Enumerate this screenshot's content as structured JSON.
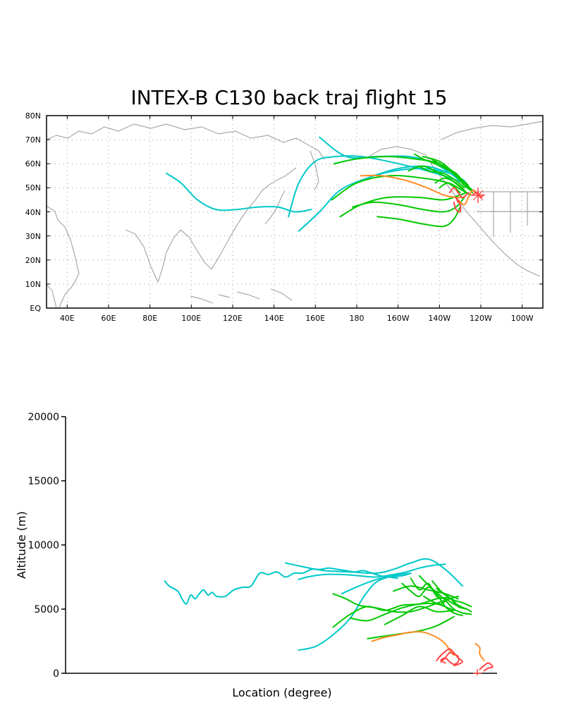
{
  "chart_data": [
    {
      "type": "line",
      "title": "INTEX-B C130 back traj flight 15",
      "projection": "map",
      "x_ticks": [
        "40E",
        "60E",
        "80E",
        "100E",
        "120E",
        "140E",
        "160E",
        "180",
        "160W",
        "140W",
        "120W",
        "100W"
      ],
      "y_ticks": [
        "EQ",
        "10N",
        "20N",
        "30N",
        "40N",
        "50N",
        "60N",
        "70N",
        "80N"
      ],
      "x_range_deg_east": [
        30,
        270
      ],
      "y_range_deg_north": [
        0,
        80
      ],
      "grid": true,
      "series": [
        {
          "color": "#00c8c8",
          "lon": [
            88,
            95,
            103,
            112,
            122,
            132,
            142,
            150,
            158
          ],
          "lat": [
            56,
            52,
            45,
            41,
            41,
            42,
            42,
            40,
            41
          ]
        },
        {
          "color": "#00c8c8",
          "lon": [
            162,
            175,
            190,
            205,
            218,
            230
          ],
          "lat": [
            71,
            63,
            63,
            63,
            60,
            53
          ]
        },
        {
          "color": "#00c8c8",
          "lon": [
            147,
            152,
            160,
            170,
            182,
            195,
            210,
            222,
            232
          ],
          "lat": [
            38,
            52,
            61,
            63,
            63,
            61,
            58,
            55,
            52
          ]
        },
        {
          "color": "#00c8c8",
          "lon": [
            152,
            162,
            172,
            185,
            198,
            212,
            225,
            232
          ],
          "lat": [
            32,
            40,
            49,
            54,
            57,
            58,
            56,
            53
          ]
        },
        {
          "color": "#00c8c8",
          "lon": [
            188,
            200,
            213,
            222,
            228,
            233
          ],
          "lat": [
            55,
            58,
            59,
            57,
            55,
            52
          ]
        },
        {
          "color": "#00c800",
          "lon": [
            169,
            180,
            195,
            208,
            220,
            228,
            232,
            236
          ],
          "lat": [
            60,
            62,
            63,
            62,
            60,
            55,
            52,
            49
          ]
        },
        {
          "color": "#00c800",
          "lon": [
            172,
            182,
            195,
            210,
            222,
            230,
            233
          ],
          "lat": [
            38,
            43,
            46,
            46,
            45,
            47,
            48
          ]
        },
        {
          "color": "#00c800",
          "lon": [
            168,
            180,
            196,
            212,
            224,
            230
          ],
          "lat": [
            45,
            52,
            55,
            54,
            52,
            48
          ]
        },
        {
          "color": "#00c800",
          "lon": [
            178,
            188,
            200,
            212,
            222,
            228,
            232
          ],
          "lat": [
            42,
            44,
            43,
            41,
            40,
            42,
            46
          ]
        },
        {
          "color": "#00c800",
          "lon": [
            190,
            200,
            212,
            222,
            227,
            230
          ],
          "lat": [
            38,
            37,
            35,
            34,
            37,
            42
          ]
        },
        {
          "color": "#00c800",
          "lon": [
            208,
            212,
            218,
            225,
            229,
            232,
            235
          ],
          "lat": [
            64,
            62,
            60,
            57,
            54,
            51,
            49
          ]
        },
        {
          "color": "#00c800",
          "lon": [
            210,
            215,
            222,
            228,
            232
          ],
          "lat": [
            59,
            57,
            56,
            53,
            50
          ]
        },
        {
          "color": "#00c800",
          "lon": [
            212,
            220,
            226,
            230,
            234
          ],
          "lat": [
            63,
            61,
            57,
            54,
            51
          ]
        },
        {
          "color": "#00c800",
          "lon": [
            216,
            222,
            228,
            232,
            236
          ],
          "lat": [
            62,
            59,
            56,
            52,
            48
          ]
        },
        {
          "color": "#00c800",
          "lon": [
            205,
            212,
            220,
            228,
            233
          ],
          "lat": [
            57,
            59,
            56,
            52,
            48
          ]
        },
        {
          "color": "#00c800",
          "lon": [
            218,
            222,
            226,
            229,
            232
          ],
          "lat": [
            52,
            54,
            53,
            51,
            49
          ]
        },
        {
          "color": "#00c800",
          "lon": [
            220,
            224,
            229,
            233,
            235
          ],
          "lat": [
            50,
            52,
            50,
            48,
            47
          ]
        },
        {
          "color": "#ff8c28",
          "lon": [
            182,
            192,
            204,
            214,
            222,
            228,
            232
          ],
          "lat": [
            55,
            55,
            53,
            50,
            47,
            46,
            46
          ]
        },
        {
          "color": "#ff8c28",
          "lon": [
            229,
            232,
            234,
            236,
            238,
            240
          ],
          "lat": [
            45,
            43,
            46,
            49,
            48,
            47
          ]
        },
        {
          "color": "#ff4646",
          "lon": [
            225,
            227,
            229,
            231,
            233,
            234
          ],
          "lat": [
            48,
            50,
            48,
            46,
            47,
            48
          ]
        },
        {
          "color": "#ff4646",
          "lon": [
            227,
            228,
            230,
            230,
            228,
            229
          ],
          "lat": [
            44,
            41,
            40,
            43,
            46,
            44
          ]
        },
        {
          "color": "#ff4646",
          "lon": [
            236,
            238,
            240,
            241
          ],
          "lat": [
            47,
            48,
            46,
            47
          ]
        }
      ]
    },
    {
      "type": "line",
      "ylabel": "Altitude (m)",
      "xlabel": "Location (degree)",
      "y_ticks": [
        "0",
        "5000",
        "10000",
        "15000",
        "20000"
      ],
      "ylim": [
        0,
        20000
      ],
      "x_range": [
        0,
        100
      ],
      "series": [
        {
          "color": "#00c8c8",
          "x": [
            23,
            24,
            26,
            27,
            28,
            29,
            30,
            31,
            32,
            33,
            34,
            35,
            37,
            39,
            41,
            43,
            45,
            47,
            49,
            51,
            53,
            55,
            57,
            59,
            61,
            63,
            65,
            67,
            69,
            71,
            73,
            75,
            77
          ],
          "y": [
            7200,
            6800,
            6400,
            5800,
            5400,
            6100,
            5800,
            6200,
            6500,
            6100,
            6300,
            6000,
            6000,
            6500,
            6700,
            6800,
            7800,
            7700,
            7900,
            7500,
            7800,
            7800,
            8100,
            8100,
            8200,
            8100,
            8000,
            7900,
            8000,
            7800,
            7600,
            7500,
            7400
          ]
        },
        {
          "color": "#00c8c8",
          "x": [
            51,
            55,
            60,
            66,
            72,
            76,
            80,
            84,
            88,
            92
          ],
          "y": [
            8600,
            8300,
            8000,
            7900,
            7800,
            8100,
            8600,
            8900,
            8100,
            6800
          ]
        },
        {
          "color": "#00c8c8",
          "x": [
            54,
            56,
            60,
            64,
            68,
            72,
            76,
            79,
            82,
            85,
            88
          ],
          "y": [
            7300,
            7500,
            7700,
            7700,
            7600,
            7500,
            7700,
            7900,
            8200,
            8400,
            8500
          ]
        },
        {
          "color": "#00c8c8",
          "x": [
            54,
            58,
            62,
            66,
            69,
            72,
            76,
            80
          ],
          "y": [
            1800,
            2100,
            3000,
            4300,
            5900,
            7100,
            7600,
            7800
          ]
        },
        {
          "color": "#00c8c8",
          "x": [
            64,
            68,
            72,
            75,
            78,
            80
          ],
          "y": [
            6200,
            6800,
            7300,
            7500,
            7600,
            7800
          ]
        },
        {
          "color": "#00c800",
          "x": [
            62,
            66,
            70,
            74,
            78,
            82,
            86,
            89
          ],
          "y": [
            3600,
            4600,
            5200,
            4900,
            5300,
            5400,
            5800,
            5900
          ]
        },
        {
          "color": "#00c800",
          "x": [
            62,
            65,
            68,
            72,
            76,
            80,
            84,
            88,
            91
          ],
          "y": [
            6200,
            5800,
            5300,
            5100,
            4800,
            4800,
            5200,
            5700,
            6000
          ]
        },
        {
          "color": "#00c800",
          "x": [
            66,
            70,
            74,
            78,
            82,
            86,
            90
          ],
          "y": [
            4300,
            4100,
            4600,
            5100,
            5400,
            5400,
            4900
          ]
        },
        {
          "color": "#00c800",
          "x": [
            70,
            74,
            78,
            82,
            86,
            90
          ],
          "y": [
            2700,
            2900,
            3100,
            3300,
            3700,
            4400
          ]
        },
        {
          "color": "#00c800",
          "x": [
            74,
            78,
            82,
            86,
            90
          ],
          "y": [
            3800,
            4500,
            5200,
            4800,
            4900
          ]
        },
        {
          "color": "#00c800",
          "x": [
            76,
            80,
            84,
            88,
            91
          ],
          "y": [
            6400,
            6800,
            6500,
            6200,
            5800
          ]
        },
        {
          "color": "#00c800",
          "x": [
            78,
            80,
            82,
            84,
            86,
            88,
            90,
            92
          ],
          "y": [
            7000,
            6400,
            6000,
            6700,
            6200,
            5200,
            4700,
            4500
          ]
        },
        {
          "color": "#00c800",
          "x": [
            80,
            82,
            84,
            86,
            88,
            90,
            92
          ],
          "y": [
            7400,
            6500,
            7000,
            6000,
            5800,
            5400,
            5100
          ]
        },
        {
          "color": "#00c800",
          "x": [
            82,
            84,
            86,
            88,
            90,
            92,
            94
          ],
          "y": [
            7600,
            6900,
            6300,
            5700,
            5000,
            4700,
            4600
          ]
        },
        {
          "color": "#00c800",
          "x": [
            83,
            85,
            87,
            89,
            91,
            93
          ],
          "y": [
            6000,
            5600,
            5400,
            5800,
            5300,
            5000
          ]
        },
        {
          "color": "#00c800",
          "x": [
            85,
            87,
            89,
            91,
            93,
            94
          ],
          "y": [
            7200,
            6400,
            5900,
            5200,
            5000,
            4800
          ]
        },
        {
          "color": "#00c800",
          "x": [
            86,
            88,
            90,
            92,
            94
          ],
          "y": [
            6600,
            6100,
            5700,
            5500,
            5200
          ]
        },
        {
          "color": "#ff8c28",
          "x": [
            71,
            74,
            77,
            80,
            83,
            86,
            88,
            89,
            90
          ],
          "y": [
            2500,
            2800,
            3000,
            3200,
            3200,
            2800,
            2300,
            1800,
            1400
          ]
        },
        {
          "color": "#ff8c28",
          "x": [
            95,
            96,
            96,
            97
          ],
          "y": [
            2300,
            2000,
            1500,
            1000
          ]
        },
        {
          "color": "#ff4646",
          "x": [
            87,
            88,
            89,
            90,
            91,
            91,
            90,
            89,
            88,
            87,
            88
          ],
          "y": [
            900,
            1200,
            1600,
            1500,
            1300,
            900,
            700,
            900,
            1200,
            1000,
            800
          ]
        },
        {
          "color": "#ff4646",
          "x": [
            86,
            87,
            88,
            89,
            90,
            91,
            92,
            91,
            90
          ],
          "y": [
            1000,
            1400,
            1700,
            1900,
            1600,
            1200,
            900,
            700,
            600
          ]
        },
        {
          "color": "#ff4646",
          "x": [
            96,
            97,
            98,
            99,
            98,
            97
          ],
          "y": [
            300,
            600,
            800,
            500,
            400,
            200
          ]
        }
      ]
    }
  ]
}
